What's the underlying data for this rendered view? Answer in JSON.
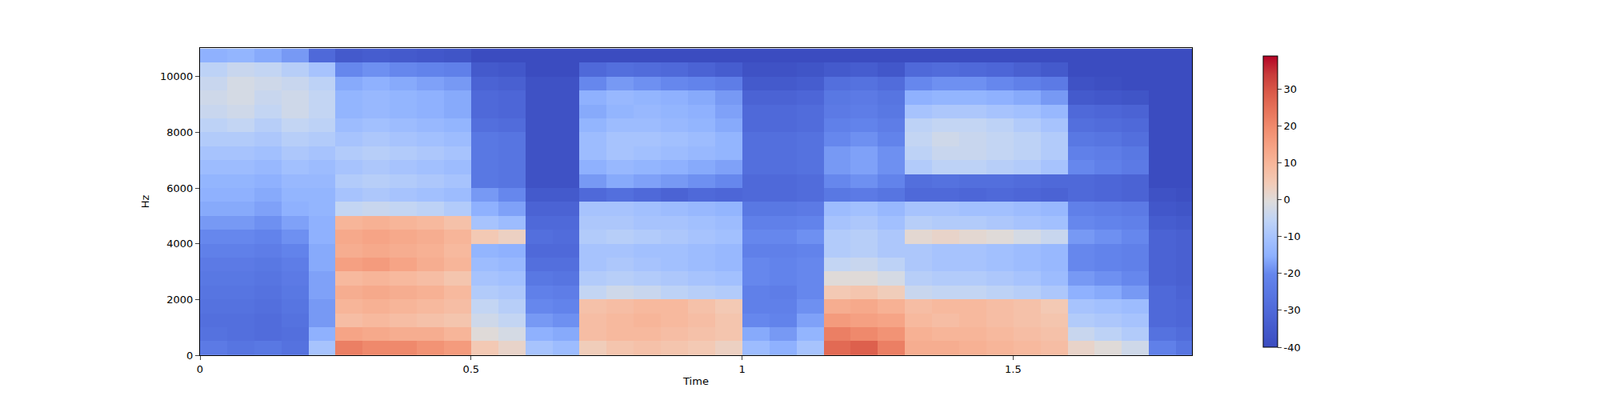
{
  "chart_data": {
    "type": "heatmap",
    "x_label": "Time",
    "y_label": "Hz",
    "x": [
      0.025,
      0.075,
      0.125,
      0.175,
      0.225,
      0.275,
      0.325,
      0.375,
      0.425,
      0.475,
      0.525,
      0.575,
      0.625,
      0.675,
      0.725,
      0.775,
      0.825,
      0.875,
      0.925,
      0.975,
      1.025,
      1.075,
      1.125,
      1.175,
      1.225,
      1.275,
      1.325,
      1.375,
      1.425,
      1.475,
      1.525,
      1.575,
      1.625,
      1.675,
      1.725,
      1.775,
      1.825
    ],
    "y": [
      250,
      750,
      1250,
      1750,
      2250,
      2750,
      3250,
      3750,
      4250,
      4750,
      5250,
      5750,
      6250,
      6750,
      7250,
      7750,
      8250,
      8750,
      9250,
      9750,
      10250,
      10750
    ],
    "cells": [
      [
        -24,
        -26,
        -25,
        -27,
        -10,
        22,
        20,
        20,
        18,
        16,
        5,
        2,
        -10,
        -12,
        4,
        6,
        7,
        6,
        5,
        3,
        -12,
        -15,
        -10,
        26,
        28,
        22,
        12,
        12,
        11,
        10,
        9,
        8,
        2,
        0,
        -3,
        -22,
        -26
      ],
      [
        -27,
        -28,
        -29,
        -28,
        -15,
        14,
        13,
        12,
        12,
        10,
        0,
        -2,
        -15,
        -16,
        8,
        9,
        9,
        8,
        7,
        6,
        -16,
        -18,
        -14,
        22,
        20,
        18,
        11,
        10,
        10,
        9,
        8,
        7,
        -4,
        -6,
        -8,
        -27,
        -29
      ],
      [
        -28,
        -28,
        -29,
        -27,
        -18,
        8,
        9,
        8,
        7,
        6,
        -3,
        -5,
        -18,
        -19,
        8,
        9,
        10,
        9,
        8,
        6,
        -20,
        -21,
        -17,
        16,
        15,
        14,
        9,
        8,
        9,
        8,
        7,
        6,
        -8,
        -9,
        -10,
        -30,
        -31
      ],
      [
        -27,
        -27,
        -28,
        -26,
        -18,
        10,
        11,
        10,
        9,
        8,
        -5,
        -7,
        -20,
        -21,
        7,
        8,
        9,
        9,
        7,
        5,
        -22,
        -22,
        -19,
        12,
        13,
        11,
        8,
        9,
        9,
        8,
        7,
        5,
        -10,
        -11,
        -12,
        -30,
        -31
      ],
      [
        -26,
        -26,
        -27,
        -25,
        -17,
        12,
        13,
        12,
        11,
        9,
        -8,
        -9,
        -22,
        -23,
        -5,
        -3,
        -4,
        -6,
        -7,
        -8,
        -22,
        -23,
        -20,
        5,
        6,
        4,
        -4,
        -5,
        -5,
        -6,
        -7,
        -9,
        -15,
        -16,
        -18,
        -30,
        -32
      ],
      [
        -25,
        -25,
        -26,
        -24,
        -17,
        9,
        10,
        9,
        8,
        6,
        -10,
        -11,
        -25,
        -26,
        -8,
        -7,
        -8,
        -9,
        -10,
        -11,
        -20,
        -21,
        -20,
        0,
        0,
        -2,
        -7,
        -8,
        -8,
        -9,
        -10,
        -12,
        -18,
        -19,
        -20,
        -32,
        -33
      ],
      [
        -24,
        -24,
        -25,
        -23,
        -16,
        15,
        16,
        14,
        12,
        10,
        -12,
        -13,
        -28,
        -28,
        -10,
        -9,
        -10,
        -11,
        -12,
        -13,
        -20,
        -21,
        -20,
        -5,
        -4,
        -6,
        -9,
        -10,
        -10,
        -11,
        -12,
        -13,
        -20,
        -21,
        -22,
        -32,
        -33
      ],
      [
        -22,
        -22,
        -23,
        -21,
        -16,
        12,
        13,
        12,
        11,
        9,
        -14,
        -15,
        -30,
        -30,
        -10,
        -10,
        -11,
        -11,
        -12,
        -13,
        -22,
        -22,
        -21,
        -8,
        -7,
        -9,
        -9,
        -10,
        -10,
        -11,
        -12,
        -13,
        -20,
        -21,
        -22,
        -32,
        -33
      ],
      [
        -20,
        -20,
        -21,
        -19,
        -15,
        13,
        14,
        13,
        12,
        10,
        5,
        3,
        -28,
        -29,
        -8,
        -7,
        -8,
        -9,
        -10,
        -11,
        -20,
        -20,
        -19,
        -8,
        -7,
        -9,
        1,
        2,
        1,
        0,
        -2,
        -4,
        -18,
        -19,
        -20,
        -32,
        -33
      ],
      [
        -18,
        -18,
        -19,
        -17,
        -15,
        10,
        11,
        10,
        9,
        7,
        -10,
        -12,
        -30,
        -30,
        -9,
        -9,
        -10,
        -10,
        -11,
        -12,
        -22,
        -22,
        -21,
        -10,
        -9,
        -11,
        -7,
        -8,
        -8,
        -9,
        -10,
        -11,
        -20,
        -21,
        -22,
        -34,
        -35
      ],
      [
        -16,
        -16,
        -17,
        -15,
        -14,
        -5,
        -4,
        -5,
        -6,
        -8,
        -15,
        -17,
        -32,
        -32,
        -10,
        -10,
        -11,
        -12,
        -13,
        -14,
        -25,
        -25,
        -24,
        -12,
        -11,
        -13,
        -10,
        -10,
        -11,
        -11,
        -12,
        -13,
        -22,
        -23,
        -24,
        -36,
        -37
      ],
      [
        -15,
        -15,
        -16,
        -14,
        -14,
        -10,
        -9,
        -10,
        -11,
        -12,
        -18,
        -20,
        -35,
        -35,
        -30,
        -28,
        -30,
        -32,
        -30,
        -31,
        -30,
        -30,
        -29,
        -25,
        -24,
        -26,
        -30,
        -30,
        -31,
        -30,
        -31,
        -32,
        -30,
        -31,
        -32,
        -38,
        -39
      ],
      [
        -14,
        -14,
        -15,
        -13,
        -13,
        -8,
        -7,
        -8,
        -9,
        -10,
        -25,
        -26,
        -38,
        -38,
        -18,
        -16,
        -17,
        -18,
        -19,
        -20,
        -30,
        -30,
        -29,
        -20,
        -19,
        -21,
        -28,
        -27,
        -28,
        -28,
        -29,
        -30,
        -30,
        -31,
        -32,
        -40,
        -40
      ],
      [
        -12,
        -12,
        -13,
        -11,
        -12,
        -10,
        -9,
        -10,
        -11,
        -12,
        -25,
        -26,
        -38,
        -38,
        -15,
        -13,
        -14,
        -15,
        -16,
        -17,
        -28,
        -28,
        -27,
        -18,
        -17,
        -19,
        -8,
        -6,
        -6,
        -7,
        -8,
        -10,
        -20,
        -22,
        -24,
        -40,
        -40
      ],
      [
        -10,
        -10,
        -11,
        -9,
        -10,
        -8,
        -7,
        -8,
        -9,
        -10,
        -25,
        -26,
        -38,
        -38,
        -12,
        -10,
        -11,
        -12,
        -13,
        -14,
        -28,
        -28,
        -27,
        -18,
        -17,
        -19,
        -6,
        -4,
        -4,
        -5,
        -6,
        -8,
        -22,
        -23,
        -25,
        -40,
        -40
      ],
      [
        -8,
        -8,
        -9,
        -7,
        -8,
        -10,
        -9,
        -10,
        -11,
        -12,
        -25,
        -26,
        -38,
        -38,
        -12,
        -10,
        -10,
        -11,
        -12,
        -14,
        -28,
        -28,
        -27,
        -20,
        -19,
        -21,
        -5,
        -3,
        -4,
        -5,
        -6,
        -8,
        -25,
        -26,
        -28,
        -40,
        -40
      ],
      [
        -6,
        -5,
        -7,
        -5,
        -6,
        -12,
        -11,
        -12,
        -13,
        -14,
        -28,
        -29,
        -38,
        -38,
        -14,
        -12,
        -12,
        -13,
        -14,
        -16,
        -30,
        -30,
        -29,
        -22,
        -21,
        -23,
        -6,
        -5,
        -5,
        -6,
        -8,
        -10,
        -28,
        -29,
        -30,
        -40,
        -40
      ],
      [
        -4,
        -3,
        -5,
        -3,
        -5,
        -14,
        -13,
        -14,
        -15,
        -16,
        -30,
        -31,
        -38,
        -38,
        -16,
        -14,
        -13,
        -14,
        -15,
        -17,
        -30,
        -30,
        -29,
        -24,
        -23,
        -25,
        -10,
        -9,
        -9,
        -10,
        -11,
        -13,
        -30,
        -31,
        -32,
        -40,
        -40
      ],
      [
        -3,
        -2,
        -4,
        -3,
        -5,
        -14,
        -13,
        -14,
        -15,
        -16,
        -30,
        -31,
        -38,
        -38,
        -15,
        -13,
        -14,
        -15,
        -16,
        -18,
        -32,
        -32,
        -31,
        -25,
        -24,
        -26,
        -15,
        -14,
        -14,
        -15,
        -16,
        -18,
        -35,
        -36,
        -37,
        -40,
        -40
      ],
      [
        -4,
        -2,
        -3,
        -4,
        -6,
        -16,
        -15,
        -16,
        -17,
        -18,
        -32,
        -33,
        -38,
        -38,
        -20,
        -18,
        -19,
        -20,
        -21,
        -23,
        -35,
        -35,
        -34,
        -28,
        -27,
        -29,
        -20,
        -19,
        -19,
        -20,
        -22,
        -24,
        -38,
        -39,
        -40,
        -40,
        -40
      ],
      [
        -6,
        -4,
        -5,
        -7,
        -10,
        -20,
        -19,
        -20,
        -21,
        -22,
        -35,
        -36,
        -40,
        -40,
        -30,
        -28,
        -29,
        -30,
        -32,
        -34,
        -38,
        -38,
        -37,
        -35,
        -34,
        -36,
        -30,
        -29,
        -30,
        -31,
        -33,
        -35,
        -40,
        -40,
        -40,
        -40,
        -40
      ],
      [
        -15,
        -14,
        -16,
        -18,
        -30,
        -35,
        -34,
        -35,
        -36,
        -37,
        -40,
        -40,
        -40,
        -40,
        -40,
        -40,
        -40,
        -40,
        -40,
        -40,
        -40,
        -40,
        -40,
        -40,
        -40,
        -40,
        -40,
        -40,
        -40,
        -40,
        -40,
        -40,
        -40,
        -40,
        -40,
        -40,
        -40
      ]
    ],
    "xlim": [
      0,
      1.83
    ],
    "ylim": [
      0,
      11025
    ],
    "xticks": [
      0,
      0.5,
      1,
      1.5
    ],
    "yticks": [
      0,
      2000,
      4000,
      6000,
      8000,
      10000
    ],
    "colorbar_range": [
      -40,
      39
    ],
    "colorbar_ticks": [
      -40,
      -30,
      -20,
      -10,
      0,
      10,
      20,
      30
    ],
    "grid": false
  }
}
